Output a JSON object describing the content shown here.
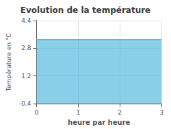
{
  "chart_data": {
    "type": "area",
    "title": "Evolution de la température",
    "x_label": "heure par heure",
    "y_label": "Température en °C",
    "x": [
      0,
      3
    ],
    "values": [
      3.3,
      3.3
    ],
    "color": "#55bbdd",
    "xlim": [
      0,
      3
    ],
    "xticks": [
      0,
      1,
      2,
      3
    ],
    "ylim": [
      -0.4,
      4.4
    ],
    "yticks": [
      -0.4,
      1.2,
      2.8,
      4.4
    ],
    "grid": true
  }
}
